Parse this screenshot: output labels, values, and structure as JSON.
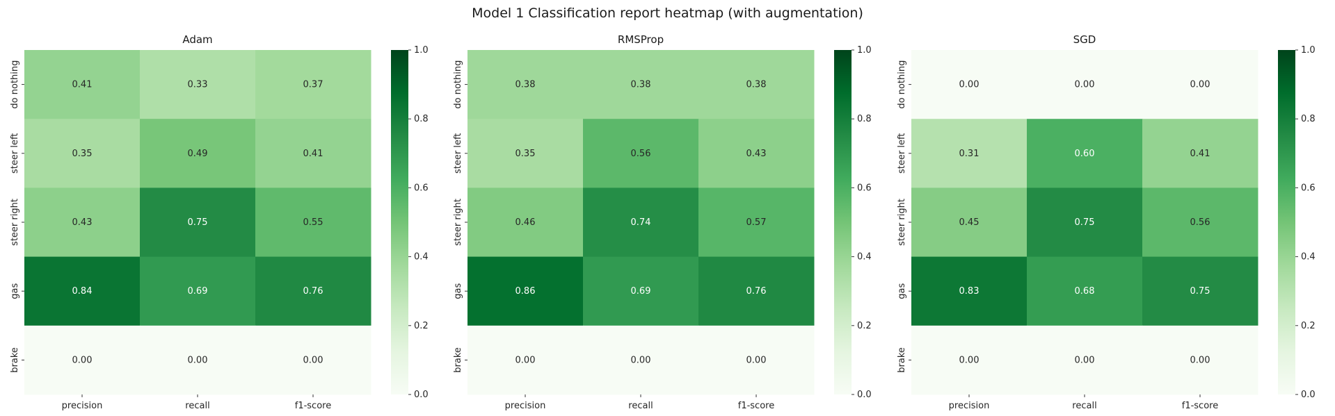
{
  "figure": {
    "title": "Model 1 Classification report heatmap (with augmentation)"
  },
  "colormap": {
    "name": "Greens",
    "stops": [
      "#f7fcf5",
      "#e5f5e0",
      "#c7e9c0",
      "#a1d99b",
      "#74c476",
      "#41ab5d",
      "#238b45",
      "#006d2c",
      "#00441b"
    ]
  },
  "chart_data": [
    {
      "type": "heatmap",
      "title": "Adam",
      "columns": [
        "precision",
        "recall",
        "f1-score"
      ],
      "rows": [
        "do nothing",
        "steer left",
        "steer right",
        "gas",
        "brake"
      ],
      "values": [
        [
          0.41,
          0.33,
          0.37
        ],
        [
          0.35,
          0.49,
          0.41
        ],
        [
          0.43,
          0.75,
          0.55
        ],
        [
          0.84,
          0.69,
          0.76
        ],
        [
          0.0,
          0.0,
          0.0
        ]
      ],
      "vmin": 0,
      "vmax": 1,
      "colorbar_ticks": [
        "0.0",
        "0.2",
        "0.4",
        "0.6",
        "0.8",
        "1.0"
      ]
    },
    {
      "type": "heatmap",
      "title": "RMSProp",
      "columns": [
        "precision",
        "recall",
        "f1-score"
      ],
      "rows": [
        "do nothing",
        "steer left",
        "steer right",
        "gas",
        "brake"
      ],
      "values": [
        [
          0.38,
          0.38,
          0.38
        ],
        [
          0.35,
          0.56,
          0.43
        ],
        [
          0.46,
          0.74,
          0.57
        ],
        [
          0.86,
          0.69,
          0.76
        ],
        [
          0.0,
          0.0,
          0.0
        ]
      ],
      "vmin": 0,
      "vmax": 1,
      "colorbar_ticks": [
        "0.0",
        "0.2",
        "0.4",
        "0.6",
        "0.8",
        "1.0"
      ]
    },
    {
      "type": "heatmap",
      "title": "SGD",
      "columns": [
        "precision",
        "recall",
        "f1-score"
      ],
      "rows": [
        "do nothing",
        "steer left",
        "steer right",
        "gas",
        "brake"
      ],
      "values": [
        [
          0.0,
          0.0,
          0.0
        ],
        [
          0.31,
          0.6,
          0.41
        ],
        [
          0.45,
          0.75,
          0.56
        ],
        [
          0.83,
          0.68,
          0.75
        ],
        [
          0.0,
          0.0,
          0.0
        ]
      ],
      "vmin": 0,
      "vmax": 1,
      "colorbar_ticks": [
        "0.0",
        "0.2",
        "0.4",
        "0.6",
        "0.8",
        "1.0"
      ]
    }
  ]
}
